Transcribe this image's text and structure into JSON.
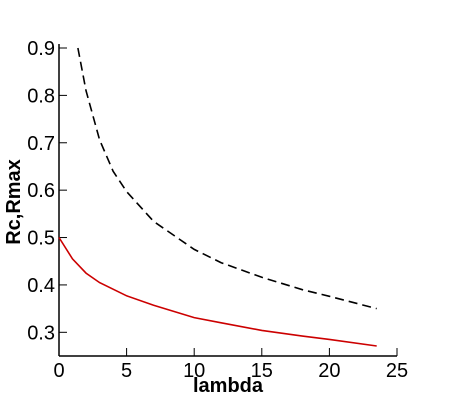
{
  "chart_data": {
    "type": "line",
    "x_label": "lambda",
    "y_label": "Rc,Rmax",
    "xlim": [
      0,
      25
    ],
    "xticks": [
      0,
      5,
      10,
      15,
      20,
      25
    ],
    "ylim": [
      0.25,
      0.9
    ],
    "yticks": [
      0.3,
      0.4,
      0.5,
      0.6,
      0.7,
      0.8,
      0.9
    ],
    "series": [
      {
        "color": "#cc0000",
        "dash": false,
        "x": [
          0,
          1,
          2,
          3,
          5,
          7,
          10,
          12,
          15,
          18,
          20,
          23.5
        ],
        "values": [
          0.5,
          0.455,
          0.425,
          0.405,
          0.377,
          0.357,
          0.331,
          0.32,
          0.304,
          0.292,
          0.285,
          0.271
        ]
      },
      {
        "color": "#000000",
        "dash": true,
        "x": [
          1.4,
          2,
          3,
          4,
          5,
          7,
          10,
          12,
          15,
          18,
          20,
          23.5
        ],
        "values": [
          0.9,
          0.81,
          0.706,
          0.64,
          0.597,
          0.534,
          0.475,
          0.447,
          0.416,
          0.39,
          0.376,
          0.35
        ]
      }
    ]
  }
}
